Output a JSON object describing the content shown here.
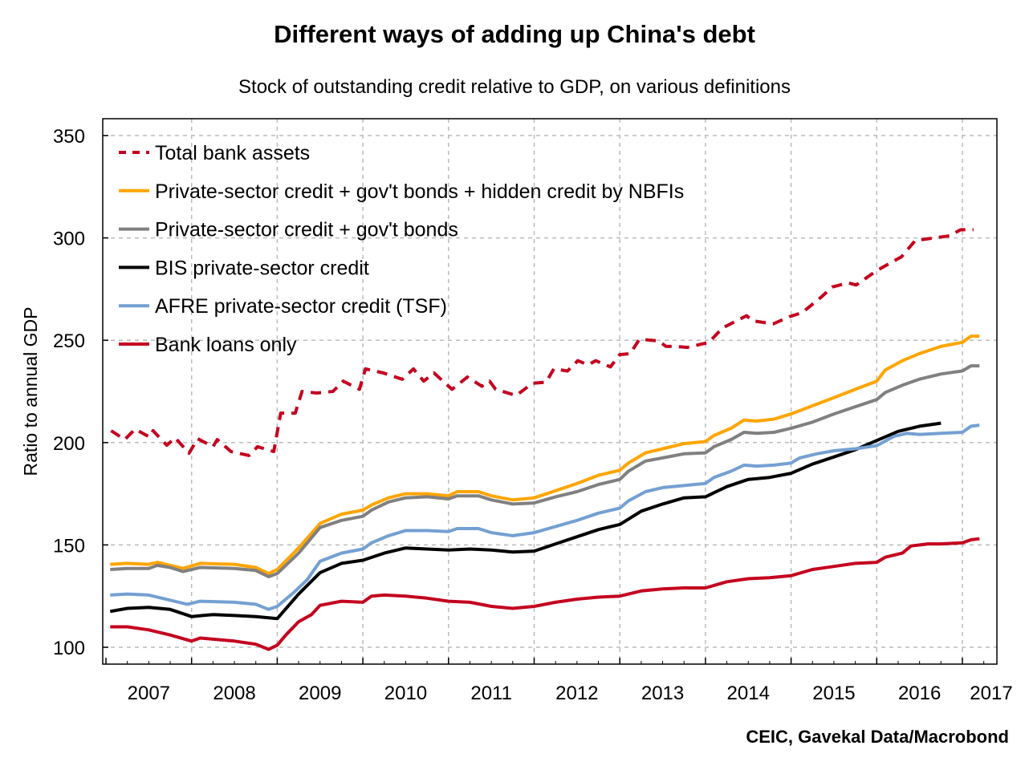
{
  "chart_data": {
    "type": "line",
    "title": "Different ways of adding up China's debt",
    "subtitle": "Stock of outstanding credit relative to GDP, on various definitions",
    "ylabel": "Ratio to annual GDP",
    "xlabel": "",
    "source": "CEIC, Gavekal Data/Macrobond",
    "ylim": [
      92,
      357
    ],
    "xlim": [
      2007,
      2017.4
    ],
    "yticks": [
      100,
      150,
      200,
      250,
      300,
      350
    ],
    "xticks": [
      "2007",
      "2008",
      "2009",
      "2010",
      "2011",
      "2012",
      "2013",
      "2014",
      "2015",
      "2016",
      "2017"
    ],
    "grid": true,
    "legend_position": "top-left",
    "series": [
      {
        "name": "Total bank assets",
        "color": "#c4001e",
        "dashed": true,
        "x": [
          2007.06,
          2007.22,
          2007.34,
          2007.51,
          2007.55,
          2007.71,
          2007.81,
          2007.97,
          2008.07,
          2008.25,
          2008.3,
          2008.46,
          2008.67,
          2008.77,
          2008.96,
          2009.04,
          2009.21,
          2009.29,
          2009.46,
          2009.65,
          2009.77,
          2009.96,
          2010.03,
          2010.24,
          2010.46,
          2010.59,
          2010.71,
          2010.83,
          2011.04,
          2011.22,
          2011.39,
          2011.48,
          2011.55,
          2011.79,
          2011.98,
          2012.14,
          2012.23,
          2012.39,
          2012.51,
          2012.63,
          2012.72,
          2012.89,
          2013.0,
          2013.12,
          2013.23,
          2013.45,
          2013.54,
          2013.65,
          2013.79,
          2014.04,
          2014.2,
          2014.48,
          2014.55,
          2014.79,
          2014.98,
          2015.13,
          2015.35,
          2015.48,
          2015.67,
          2015.76,
          2016.0,
          2016.29,
          2016.45,
          2016.85,
          2016.98,
          2017.13
        ],
        "values": [
          205.8,
          201.5,
          206.6,
          202.7,
          205.8,
          198.7,
          202.3,
          194.8,
          201.9,
          198,
          201.5,
          195.6,
          193.7,
          198,
          195.6,
          214.4,
          214.4,
          225,
          224.2,
          225,
          230,
          226,
          236,
          234,
          230.9,
          236,
          230,
          234,
          226,
          232,
          227.5,
          230,
          226,
          223,
          229,
          229.5,
          236,
          235,
          240,
          238,
          240,
          237,
          243,
          243.4,
          250.5,
          249.7,
          247,
          247,
          246.5,
          249,
          256,
          262,
          259.5,
          258,
          261.5,
          263.5,
          271,
          276,
          278,
          277,
          284,
          290.8,
          298.7,
          301,
          304,
          304
        ]
      },
      {
        "name": "Private-sector credit + gov't bonds + hidden credit by NBFIs",
        "color": "#ffa500",
        "dashed": false,
        "x": [
          2007.05,
          2007.25,
          2007.5,
          2007.6,
          2007.9,
          2008.1,
          2008.5,
          2008.75,
          2008.9,
          2009.0,
          2009.25,
          2009.5,
          2009.75,
          2010.0,
          2010.1,
          2010.3,
          2010.5,
          2010.75,
          2011.0,
          2011.1,
          2011.35,
          2011.5,
          2011.75,
          2012.0,
          2012.25,
          2012.5,
          2012.75,
          2013.0,
          2013.1,
          2013.3,
          2013.5,
          2013.75,
          2014.0,
          2014.1,
          2014.3,
          2014.45,
          2014.6,
          2014.8,
          2015.0,
          2015.25,
          2015.5,
          2015.75,
          2016.0,
          2016.1,
          2016.3,
          2016.5,
          2016.75,
          2017.0,
          2017.1,
          2017.2
        ],
        "values": [
          140.5,
          141,
          140.5,
          141.5,
          138.5,
          141,
          140.5,
          139,
          136,
          138,
          148.5,
          160.5,
          165,
          167,
          169.5,
          173,
          175,
          175,
          174,
          176,
          176,
          174,
          172,
          173,
          176.5,
          180,
          184,
          186.5,
          190,
          195,
          197,
          199.5,
          200.5,
          203.5,
          207,
          211,
          210.5,
          211.5,
          214,
          218,
          222,
          226,
          230,
          235.5,
          240,
          243.5,
          247,
          249,
          252,
          252
        ]
      },
      {
        "name": "Private-sector credit + gov't bonds",
        "color": "#808080",
        "dashed": false,
        "x": [
          2007.05,
          2007.25,
          2007.5,
          2007.6,
          2007.75,
          2007.9,
          2008.1,
          2008.5,
          2008.75,
          2008.9,
          2009.0,
          2009.25,
          2009.5,
          2009.75,
          2010.0,
          2010.1,
          2010.3,
          2010.5,
          2010.75,
          2011.0,
          2011.1,
          2011.35,
          2011.5,
          2011.75,
          2012.0,
          2012.25,
          2012.5,
          2012.75,
          2013.0,
          2013.1,
          2013.3,
          2013.5,
          2013.75,
          2014.0,
          2014.1,
          2014.3,
          2014.45,
          2014.6,
          2014.8,
          2015.0,
          2015.25,
          2015.5,
          2015.75,
          2016.0,
          2016.1,
          2016.3,
          2016.5,
          2016.75,
          2017.0,
          2017.1,
          2017.2
        ],
        "values": [
          138,
          138.5,
          138.5,
          140,
          139,
          137,
          139,
          138.5,
          137.5,
          134.5,
          136,
          146,
          158.5,
          162,
          164,
          167,
          171,
          173,
          173.5,
          172.5,
          174,
          174,
          172,
          170,
          170.5,
          173.5,
          176,
          179.5,
          182,
          186,
          191,
          192.5,
          194.5,
          195,
          198,
          201.5,
          205,
          204.5,
          205,
          207,
          210,
          214,
          217.5,
          221,
          224.5,
          228,
          231,
          233.5,
          235,
          237.5,
          237.5
        ]
      },
      {
        "name": "BIS private-sector credit",
        "color": "#000000",
        "dashed": false,
        "x": [
          2007.05,
          2007.25,
          2007.5,
          2007.75,
          2008.0,
          2008.25,
          2008.5,
          2008.75,
          2009.0,
          2009.25,
          2009.5,
          2009.75,
          2010.0,
          2010.25,
          2010.5,
          2010.75,
          2011.0,
          2011.25,
          2011.5,
          2011.75,
          2012.0,
          2012.25,
          2012.5,
          2012.75,
          2013.0,
          2013.25,
          2013.5,
          2013.75,
          2014.0,
          2014.25,
          2014.5,
          2014.75,
          2015.0,
          2015.25,
          2015.5,
          2015.75,
          2016.0,
          2016.25,
          2016.5,
          2016.75
        ],
        "values": [
          117.5,
          119,
          119.5,
          118.5,
          115,
          116,
          115.5,
          115,
          114,
          126,
          136.5,
          141,
          142.5,
          146,
          148.5,
          148,
          147.5,
          148,
          147.5,
          146.5,
          147,
          150.5,
          154,
          157.5,
          160,
          166.5,
          170,
          173,
          173.5,
          178.5,
          182,
          183,
          185,
          189.5,
          193,
          196.5,
          201,
          205.5,
          208,
          209.5
        ]
      },
      {
        "name": "AFRE private-sector credit (TSF)",
        "color": "#74a0d2",
        "dashed": false,
        "x": [
          2007.05,
          2007.25,
          2007.5,
          2007.75,
          2007.95,
          2008.1,
          2008.5,
          2008.75,
          2008.9,
          2009.0,
          2009.2,
          2009.35,
          2009.5,
          2009.75,
          2010.0,
          2010.1,
          2010.3,
          2010.5,
          2010.75,
          2011.0,
          2011.1,
          2011.35,
          2011.5,
          2011.75,
          2012.0,
          2012.25,
          2012.5,
          2012.75,
          2013.0,
          2013.1,
          2013.3,
          2013.5,
          2013.75,
          2014.0,
          2014.1,
          2014.3,
          2014.45,
          2014.6,
          2014.8,
          2015.0,
          2015.1,
          2015.3,
          2015.5,
          2015.75,
          2016.0,
          2016.2,
          2016.35,
          2016.5,
          2016.75,
          2017.0,
          2017.1,
          2017.2
        ],
        "values": [
          125.5,
          126,
          125.5,
          123,
          121,
          122.5,
          122,
          121,
          118.5,
          120,
          127,
          133,
          142,
          146,
          148,
          151,
          154.5,
          157,
          157,
          156.5,
          158,
          158,
          156,
          154.5,
          156,
          159,
          162,
          165.5,
          168,
          171.5,
          176,
          178,
          179,
          180,
          183,
          186,
          189,
          188.5,
          189,
          190,
          192.5,
          194.5,
          196,
          197,
          198.5,
          203,
          204.5,
          204,
          204.5,
          205,
          208,
          208.5
        ]
      },
      {
        "name": "Bank loans only",
        "color": "#c4001e",
        "dashed": false,
        "x": [
          2007.05,
          2007.25,
          2007.5,
          2007.75,
          2008.0,
          2008.1,
          2008.5,
          2008.75,
          2008.9,
          2009.0,
          2009.1,
          2009.25,
          2009.4,
          2009.5,
          2009.75,
          2010.0,
          2010.1,
          2010.25,
          2010.5,
          2010.75,
          2011.0,
          2011.25,
          2011.5,
          2011.75,
          2012.0,
          2012.25,
          2012.5,
          2012.75,
          2013.0,
          2013.25,
          2013.5,
          2013.75,
          2014.0,
          2014.25,
          2014.5,
          2014.75,
          2015.0,
          2015.25,
          2015.5,
          2015.75,
          2016.0,
          2016.1,
          2016.3,
          2016.4,
          2016.6,
          2016.75,
          2017.0,
          2017.1,
          2017.2
        ],
        "values": [
          110,
          110,
          108.5,
          106,
          103,
          104.5,
          103,
          101.5,
          99,
          101,
          106,
          112.5,
          116,
          120.5,
          122.5,
          122,
          125,
          125.5,
          125,
          124,
          122.5,
          122,
          120,
          119,
          120,
          122,
          123.5,
          124.5,
          125,
          127.5,
          128.5,
          129,
          129,
          132,
          133.5,
          134,
          135,
          138,
          139.5,
          141,
          141.5,
          144,
          146,
          149.5,
          150.5,
          150.5,
          151,
          152.5,
          153
        ]
      }
    ]
  }
}
